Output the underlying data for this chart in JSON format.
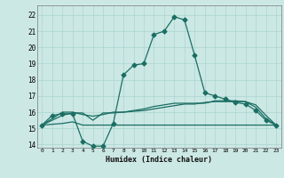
{
  "xlabel": "Humidex (Indice chaleur)",
  "xlim": [
    -0.5,
    23.5
  ],
  "ylim": [
    13.8,
    22.6
  ],
  "yticks": [
    14,
    15,
    16,
    17,
    18,
    19,
    20,
    21,
    22
  ],
  "xticks": [
    0,
    1,
    2,
    3,
    4,
    5,
    6,
    7,
    8,
    9,
    10,
    11,
    12,
    13,
    14,
    15,
    16,
    17,
    18,
    19,
    20,
    21,
    22,
    23
  ],
  "bg_color": "#cce8e4",
  "grid_color": "#aad4d0",
  "line_color": "#1a6e64",
  "line_width": 0.9,
  "series": [
    {
      "x": [
        0,
        1,
        2,
        3,
        4,
        5,
        6,
        7,
        8,
        9,
        10,
        11,
        12,
        13,
        14,
        15,
        16,
        17,
        18,
        19,
        20,
        21,
        22,
        23
      ],
      "y": [
        15.2,
        15.8,
        15.9,
        15.9,
        14.2,
        13.9,
        13.9,
        15.3,
        18.3,
        18.9,
        19.0,
        20.8,
        21.0,
        21.9,
        21.7,
        19.5,
        17.2,
        17.0,
        16.8,
        16.6,
        16.5,
        16.1,
        15.5,
        15.2
      ],
      "marker": "D",
      "marker_size": 2.5
    },
    {
      "x": [
        0,
        1,
        2,
        3,
        4,
        5,
        6,
        7,
        8,
        9,
        10,
        11,
        12,
        13,
        14,
        15,
        16,
        17,
        18,
        19,
        20,
        21,
        22,
        23
      ],
      "y": [
        15.2,
        15.5,
        15.8,
        15.95,
        15.95,
        15.5,
        15.95,
        15.95,
        16.0,
        16.05,
        16.1,
        16.2,
        16.3,
        16.4,
        16.5,
        16.5,
        16.6,
        16.65,
        16.65,
        16.65,
        16.65,
        16.45,
        15.8,
        15.2
      ],
      "marker": null,
      "marker_size": 0
    },
    {
      "x": [
        0,
        1,
        2,
        3,
        4,
        5,
        6,
        7,
        8,
        9,
        10,
        11,
        12,
        13,
        14,
        15,
        16,
        17,
        18,
        19,
        20,
        21,
        22,
        23
      ],
      "y": [
        15.2,
        15.25,
        15.3,
        15.4,
        15.2,
        15.2,
        15.2,
        15.2,
        15.2,
        15.2,
        15.2,
        15.2,
        15.2,
        15.2,
        15.2,
        15.2,
        15.2,
        15.2,
        15.2,
        15.2,
        15.2,
        15.2,
        15.2,
        15.2
      ],
      "marker": null,
      "marker_size": 0
    },
    {
      "x": [
        0,
        1,
        2,
        3,
        4,
        5,
        6,
        7,
        8,
        9,
        10,
        11,
        12,
        13,
        14,
        15,
        16,
        17,
        18,
        19,
        20,
        21,
        22,
        23
      ],
      "y": [
        15.2,
        15.6,
        16.0,
        16.0,
        15.85,
        15.75,
        15.85,
        16.0,
        16.0,
        16.1,
        16.2,
        16.35,
        16.45,
        16.55,
        16.55,
        16.55,
        16.55,
        16.7,
        16.7,
        16.7,
        16.65,
        16.3,
        15.6,
        15.2
      ],
      "marker": null,
      "marker_size": 0
    }
  ]
}
